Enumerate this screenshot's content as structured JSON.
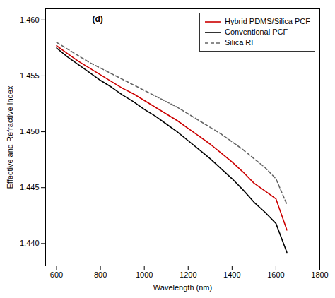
{
  "chart_data": {
    "type": "line",
    "xlabel": "Wavelength (nm)",
    "ylabel": "Effective and Refractive Index",
    "x": [
      600,
      650,
      700,
      750,
      800,
      850,
      900,
      950,
      1000,
      1050,
      1100,
      1150,
      1200,
      1250,
      1300,
      1350,
      1400,
      1450,
      1500,
      1550,
      1600,
      1650
    ],
    "series": [
      {
        "name": "Hybrid PDMS/Silica PCF",
        "color": "#cc0000",
        "line_style": "solid",
        "values": [
          1.4577,
          1.457,
          1.4563,
          1.4557,
          1.4551,
          1.4545,
          1.4539,
          1.4534,
          1.4528,
          1.4522,
          1.4516,
          1.451,
          1.4503,
          1.4496,
          1.4489,
          1.4481,
          1.4473,
          1.4464,
          1.4454,
          1.4447,
          1.444,
          1.4412
        ]
      },
      {
        "name": "Conventional PCF",
        "color": "#000000",
        "line_style": "solid",
        "values": [
          1.4575,
          1.4567,
          1.456,
          1.4553,
          1.4546,
          1.454,
          1.4533,
          1.4527,
          1.452,
          1.4514,
          1.4507,
          1.45,
          1.4492,
          1.4484,
          1.4476,
          1.4467,
          1.4458,
          1.4448,
          1.4437,
          1.4428,
          1.4418,
          1.4392
        ]
      },
      {
        "name": "Silica RI",
        "color": "#666666",
        "line_style": "dashed",
        "values": [
          1.458,
          1.4574,
          1.4568,
          1.4562,
          1.4557,
          1.4552,
          1.4547,
          1.4542,
          1.4537,
          1.4532,
          1.4527,
          1.4522,
          1.4516,
          1.451,
          1.4504,
          1.4498,
          1.4491,
          1.4484,
          1.4476,
          1.4468,
          1.4458,
          1.4435
        ]
      }
    ],
    "xlim": [
      550,
      1800
    ],
    "xticks": [
      600,
      800,
      1000,
      1200,
      1400,
      1600,
      1800
    ],
    "ylim": [
      1.438,
      1.461
    ],
    "yticks": [
      {
        "value": 1.44,
        "label": "1.440"
      },
      1.445,
      {
        "value": 1.45,
        "label": "1.450"
      },
      1.455,
      {
        "value": 1.46,
        "label": "1.460"
      }
    ],
    "legend": "upper right",
    "annotations": [
      "(d)"
    ]
  }
}
